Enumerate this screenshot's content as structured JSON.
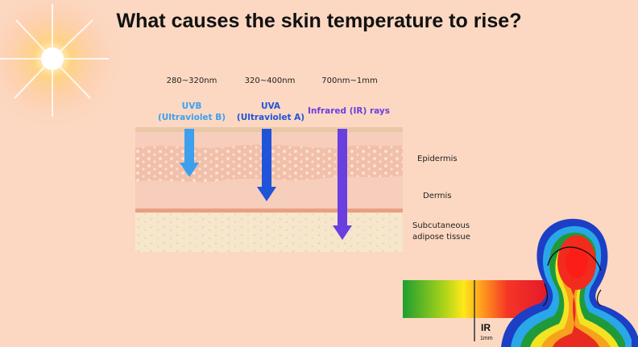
{
  "title": "What causes the skin temperature to rise?",
  "wavelengths": [
    "280~320nm",
    "320~400nm",
    "700nm~1mm"
  ],
  "rays": [
    {
      "name": "UVB",
      "sub": "(Ultraviolet B)",
      "color": "#3ca0ee"
    },
    {
      "name": "UVA",
      "sub": "(Ultraviolet A)",
      "color": "#1f53d9"
    },
    {
      "name": "Infrared (IR) rays",
      "sub": "",
      "color": "#6a3fe0"
    }
  ],
  "layers": {
    "epidermis": "Epidermis",
    "dermis": "Dermis",
    "subcutaneous_line1": "Subcutaneous",
    "subcutaneous_line2": "adipose tissue"
  },
  "spectrum": {
    "ir_label": "IR",
    "unit_label": "1mm"
  },
  "colors": {
    "background": "#fcd8c2",
    "epidermis": "#f2bfa8",
    "dermis": "#f7cdbb",
    "fat": "#f6e6cc"
  }
}
